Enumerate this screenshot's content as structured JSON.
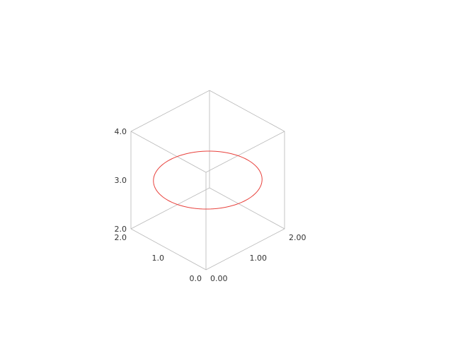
{
  "chart_data": {
    "type": "line",
    "subtype": "3d-parametric-curve",
    "title": "",
    "xlabel": "",
    "ylabel": "",
    "zlabel": "",
    "xlim": [
      0.0,
      2.0
    ],
    "ylim": [
      0.0,
      2.0
    ],
    "zlim": [
      2.0,
      4.0
    ],
    "grid": false,
    "box": true,
    "x_ticks": [
      "0.0",
      "1.0",
      "2.0"
    ],
    "y_ticks": [
      "0.00",
      "1.00",
      "2.00"
    ],
    "z_ticks": [
      "2.0",
      "3.0",
      "4.0"
    ],
    "series": [
      {
        "curve": "circle",
        "center": [
          1.0,
          1.0,
          3.0
        ],
        "radius": 1.0,
        "plane": "horizontal (constant z)",
        "color": "#e8413c"
      }
    ]
  },
  "colors": {
    "box_lines": "#b8b8b8",
    "curve": "#e8413c",
    "tick_labels": "#333333",
    "background": "#ffffff"
  }
}
